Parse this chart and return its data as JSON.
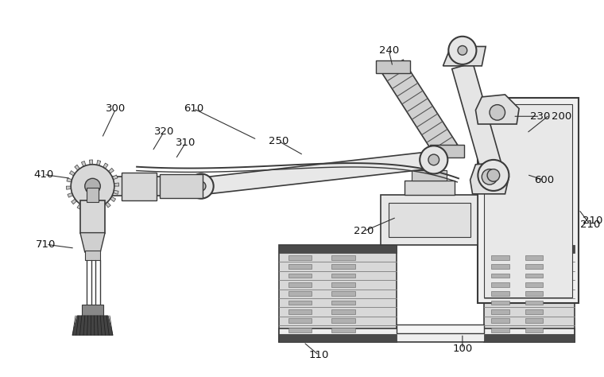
{
  "bg_color": "#ffffff",
  "lc": "#3a3a3a",
  "figsize": [
    7.6,
    4.74
  ],
  "dpi": 100,
  "xlim": [
    0,
    760
  ],
  "ylim": [
    0,
    474
  ]
}
